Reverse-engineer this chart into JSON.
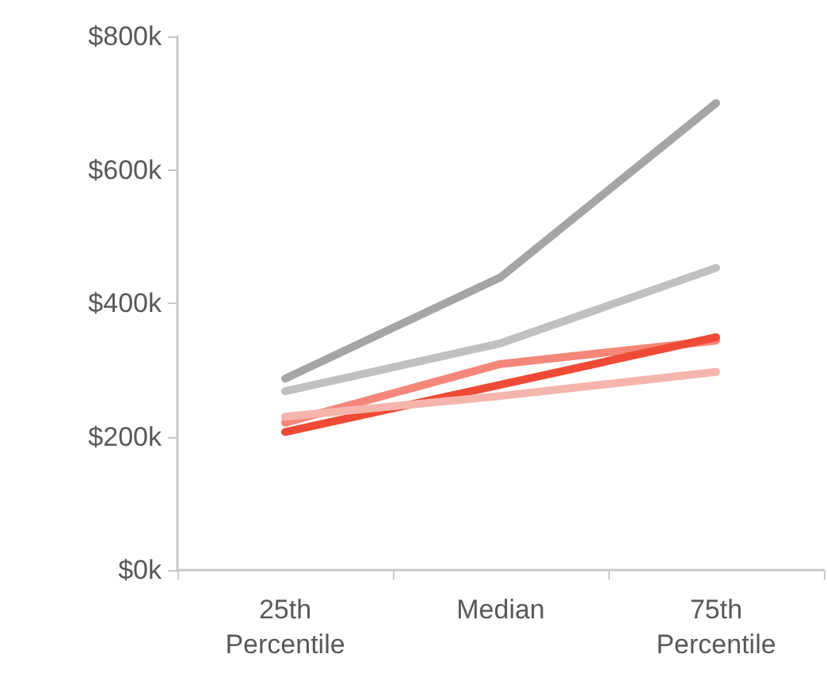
{
  "chart_data": {
    "type": "line",
    "categories": [
      "25th\nPercentile",
      "Median",
      "75th\nPercentile"
    ],
    "series": [
      {
        "color": "#a5a5a5",
        "values": [
          287,
          439,
          700
        ]
      },
      {
        "color": "#c0c0c0",
        "values": [
          268,
          340,
          453
        ]
      },
      {
        "color": "#f4877a",
        "values": [
          221,
          309,
          344
        ]
      },
      {
        "color": "#ee4a35",
        "values": [
          207,
          278,
          349
        ]
      },
      {
        "color": "#f5b5ad",
        "values": [
          230,
          261,
          297
        ]
      }
    ],
    "ylim": [
      0,
      800
    ],
    "yticks": [
      {
        "value": 0,
        "label": "$0k"
      },
      {
        "value": 200,
        "label": "$200k"
      },
      {
        "value": 400,
        "label": "$400k"
      },
      {
        "value": 600,
        "label": "$600k"
      },
      {
        "value": 800,
        "label": "$800k"
      }
    ],
    "grid": false,
    "marker": "none",
    "line_style": "solid"
  }
}
